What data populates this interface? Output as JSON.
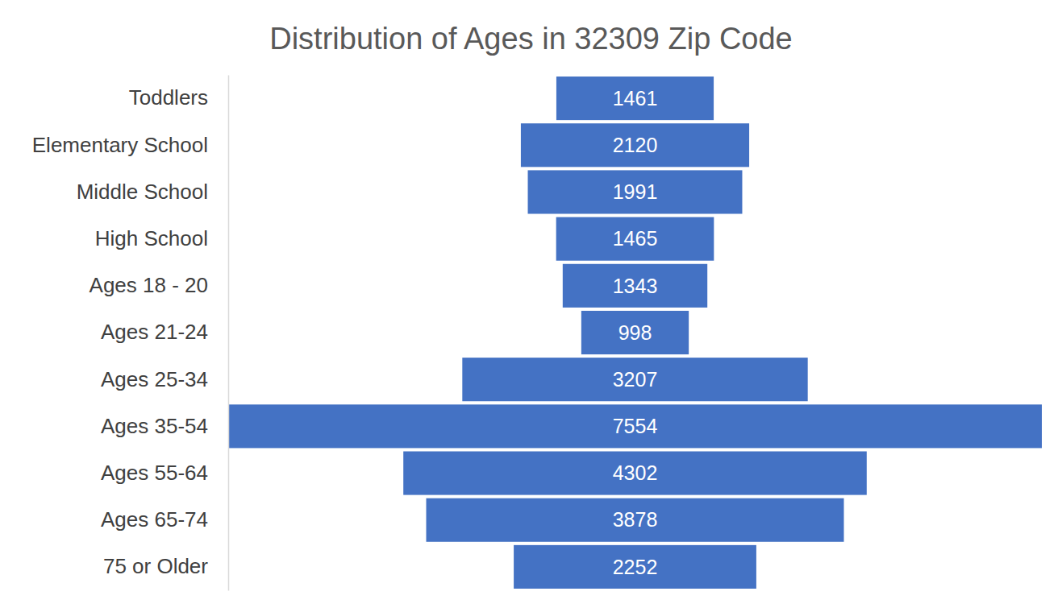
{
  "chart_data": {
    "type": "funnel",
    "title": "Distribution of Ages in 32309 Zip Code",
    "orientation": "horizontal",
    "categories": [
      "Toddlers",
      "Elementary School",
      "Middle School",
      "High School",
      "Ages 18 - 20",
      "Ages 21-24",
      "Ages 25-34",
      "Ages 35-54",
      "Ages 55-64",
      "Ages 65-74",
      "75 or Older"
    ],
    "values": [
      1461,
      2120,
      1991,
      1465,
      1343,
      998,
      3207,
      7554,
      4302,
      3878,
      2252
    ],
    "color": "#4472c4",
    "data_labels": true,
    "tick_labels": "y"
  }
}
